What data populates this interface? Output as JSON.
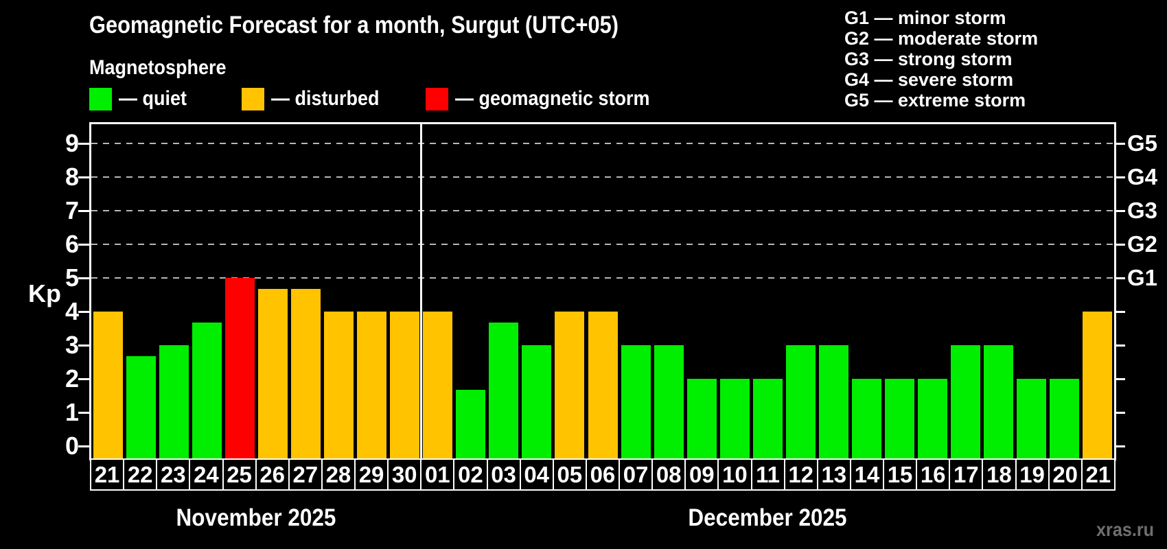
{
  "title": "Geomagnetic Forecast for a month, Surgut (UTC+05)",
  "subtitle": "Magnetosphere",
  "legend": {
    "items": [
      {
        "name": "quiet",
        "label": "— quiet",
        "color": "#00ee00"
      },
      {
        "name": "disturbed",
        "label": "— disturbed",
        "color": "#ffc300"
      },
      {
        "name": "storm",
        "label": "— geomagnetic storm",
        "color": "#ff0000"
      }
    ]
  },
  "g_legend": [
    "G1 — minor storm",
    "G2 — moderate storm",
    "G3 — strong storm",
    "G4 — severe storm",
    "G5 — extreme storm"
  ],
  "watermark": "xras.ru",
  "chart_data": {
    "type": "bar",
    "title": "Geomagnetic Forecast for a month, Surgut (UTC+05)",
    "ylabel": "Kp",
    "ylim": [
      0,
      9
    ],
    "y_ticks": [
      "0",
      "1",
      "2",
      "3",
      "4",
      "5",
      "6",
      "7",
      "8",
      "9"
    ],
    "gridlines_at": [
      5,
      6,
      7,
      8,
      9
    ],
    "grid_style": "dashed gray horizontal, only at G-storm levels",
    "g_scale": [
      {
        "label": "G1",
        "kp": 5
      },
      {
        "label": "G2",
        "kp": 6
      },
      {
        "label": "G3",
        "kp": 7
      },
      {
        "label": "G4",
        "kp": 8
      },
      {
        "label": "G5",
        "kp": 9
      }
    ],
    "months": [
      {
        "label": "November 2025",
        "days": 10
      },
      {
        "label": "December 2025",
        "days": 21
      }
    ],
    "categories": [
      "21",
      "22",
      "23",
      "24",
      "25",
      "26",
      "27",
      "28",
      "29",
      "30",
      "01",
      "02",
      "03",
      "04",
      "05",
      "06",
      "07",
      "08",
      "09",
      "10",
      "11",
      "12",
      "13",
      "14",
      "15",
      "16",
      "17",
      "18",
      "19",
      "20",
      "21"
    ],
    "values": [
      4,
      2.67,
      3,
      3.67,
      5,
      4.67,
      4.67,
      4,
      4,
      4,
      4,
      1.67,
      3.67,
      3,
      4,
      4,
      3,
      3,
      2,
      2,
      2,
      3,
      3,
      2,
      2,
      2,
      3,
      3,
      2,
      2,
      4
    ],
    "states": [
      "disturbed",
      "quiet",
      "quiet",
      "quiet",
      "storm",
      "disturbed",
      "disturbed",
      "disturbed",
      "disturbed",
      "disturbed",
      "disturbed",
      "quiet",
      "quiet",
      "quiet",
      "disturbed",
      "disturbed",
      "quiet",
      "quiet",
      "quiet",
      "quiet",
      "quiet",
      "quiet",
      "quiet",
      "quiet",
      "quiet",
      "quiet",
      "quiet",
      "quiet",
      "quiet",
      "quiet",
      "disturbed"
    ],
    "colors": {
      "quiet": "#00ee00",
      "disturbed": "#ffc300",
      "storm": "#ff0000"
    },
    "grid_color": "#b8b8b8",
    "background": "#000000"
  }
}
